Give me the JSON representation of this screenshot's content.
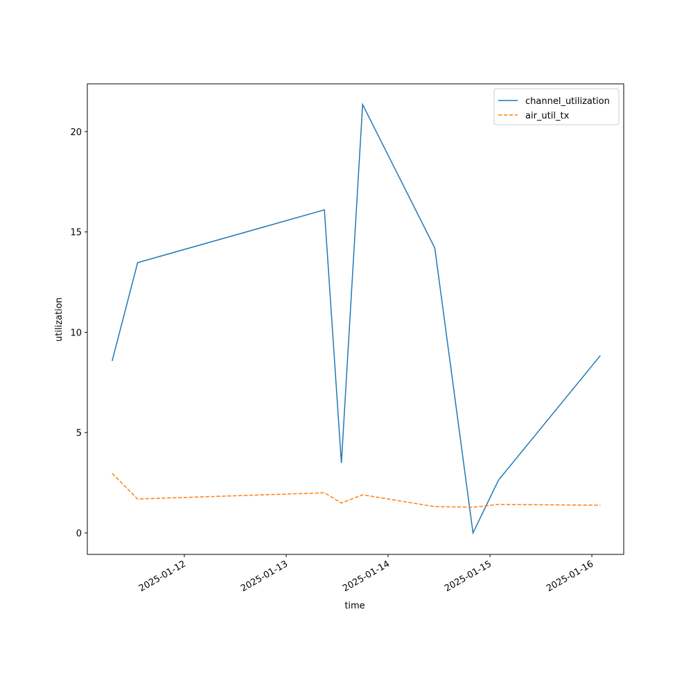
{
  "chart_data": {
    "type": "line",
    "x_label": "time",
    "y_label": "utilization",
    "x": [
      "2025-01-11T07:00",
      "2025-01-11T13:00",
      "2025-01-13T09:00",
      "2025-01-13T13:00",
      "2025-01-13T18:00",
      "2025-01-14T11:00",
      "2025-01-14T20:00",
      "2025-01-15T02:00",
      "2025-01-16T02:00"
    ],
    "series": [
      {
        "name": "channel_utilization",
        "color": "#1f77b4",
        "dash": "solid",
        "values": [
          8.57,
          13.47,
          16.1,
          3.49,
          21.35,
          14.2,
          0,
          2.63,
          8.84
        ]
      },
      {
        "name": "air_util_tx",
        "color": "#ff7f0e",
        "dash": "dashed",
        "values": [
          2.97,
          1.69,
          2.0,
          1.49,
          1.9,
          1.31,
          1.28,
          1.42,
          1.38
        ]
      }
    ],
    "xlim": [
      "2025-01-11T01:09",
      "2025-01-16T07:30"
    ],
    "xticks": [
      "2025-01-12",
      "2025-01-13",
      "2025-01-14",
      "2025-01-15",
      "2025-01-16"
    ],
    "ylim": [
      -1.07,
      22.38
    ],
    "yticks": [
      0,
      5,
      10,
      15,
      20
    ],
    "legend": "upper-right"
  }
}
